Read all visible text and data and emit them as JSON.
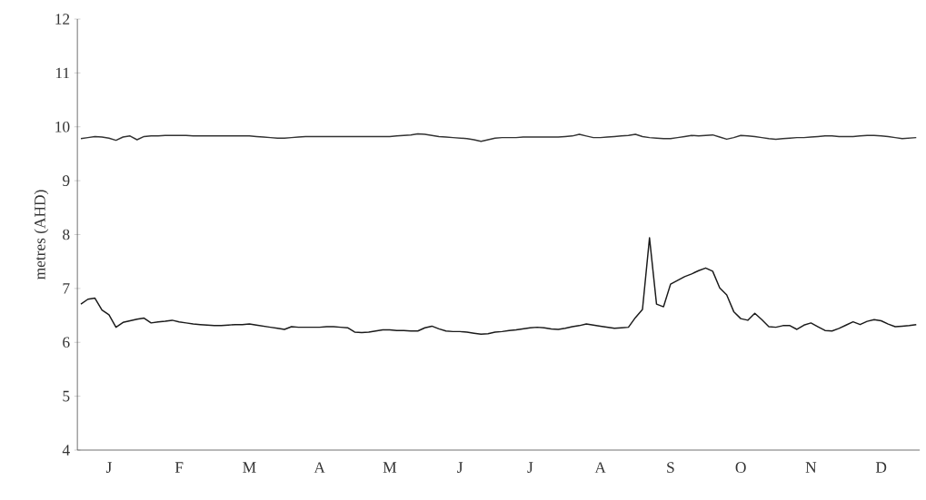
{
  "chart_data": {
    "type": "line",
    "ylabel": "metres (AHD)",
    "ylim": [
      4,
      12
    ],
    "categories": [
      null,
      null,
      null,
      null,
      "J",
      null,
      null,
      null,
      null,
      null,
      null,
      null,
      null,
      null,
      "F",
      null,
      null,
      null,
      null,
      null,
      null,
      null,
      null,
      null,
      "M",
      null,
      null,
      null,
      null,
      null,
      null,
      null,
      null,
      null,
      "A",
      null,
      null,
      null,
      null,
      null,
      null,
      null,
      null,
      null,
      "M",
      null,
      null,
      null,
      null,
      null,
      null,
      null,
      null,
      null,
      "J",
      null,
      null,
      null,
      null,
      null,
      null,
      null,
      null,
      null,
      "J",
      null,
      null,
      null,
      null,
      null,
      null,
      null,
      null,
      null,
      "A",
      null,
      null,
      null,
      null,
      null,
      null,
      null,
      null,
      null,
      "S",
      null,
      null,
      null,
      null,
      null,
      null,
      null,
      null,
      null,
      "O",
      null,
      null,
      null,
      null,
      null,
      null,
      null,
      null,
      null,
      "N",
      null,
      null,
      null,
      null,
      null,
      null,
      null,
      null,
      null,
      "D",
      null,
      null,
      null,
      null,
      null
    ],
    "yticks": [
      4,
      5,
      6,
      7,
      8,
      9,
      10,
      11,
      12
    ],
    "series": [
      {
        "color": "#333333",
        "values": [
          9.78,
          9.8,
          9.82,
          9.81,
          9.79,
          9.75,
          9.81,
          9.83,
          9.76,
          9.82,
          9.83,
          9.83,
          9.84,
          9.84,
          9.84,
          9.84,
          9.83,
          9.83,
          9.83,
          9.83,
          9.83,
          9.83,
          9.83,
          9.83,
          9.83,
          9.82,
          9.81,
          9.8,
          9.79,
          9.79,
          9.8,
          9.81,
          9.82,
          9.82,
          9.82,
          9.82,
          9.82,
          9.82,
          9.82,
          9.82,
          9.82,
          9.82,
          9.82,
          9.82,
          9.82,
          9.83,
          9.84,
          9.85,
          9.87,
          9.86,
          9.84,
          9.82,
          9.81,
          9.8,
          9.79,
          9.78,
          9.76,
          9.73,
          9.76,
          9.79,
          9.8,
          9.8,
          9.8,
          9.81,
          9.81,
          9.81,
          9.81,
          9.81,
          9.81,
          9.82,
          9.83,
          9.86,
          9.83,
          9.8,
          9.8,
          9.81,
          9.82,
          9.83,
          9.84,
          9.86,
          9.82,
          9.8,
          9.79,
          9.78,
          9.78,
          9.8,
          9.82,
          9.84,
          9.83,
          9.84,
          9.85,
          9.81,
          9.77,
          9.8,
          9.84,
          9.83,
          9.82,
          9.8,
          9.78,
          9.77,
          9.78,
          9.79,
          9.8,
          9.8,
          9.81,
          9.82,
          9.83,
          9.83,
          9.82,
          9.82,
          9.82,
          9.83,
          9.84,
          9.84,
          9.83,
          9.82,
          9.8,
          9.78,
          9.79,
          9.8
        ]
      },
      {
        "color": "#1a1a1a",
        "values": [
          6.71,
          6.8,
          6.82,
          6.6,
          6.51,
          6.28,
          6.37,
          6.4,
          6.43,
          6.45,
          6.36,
          6.38,
          6.39,
          6.41,
          6.38,
          6.36,
          6.34,
          6.33,
          6.32,
          6.31,
          6.31,
          6.32,
          6.33,
          6.33,
          6.34,
          6.32,
          6.3,
          6.28,
          6.26,
          6.24,
          6.29,
          6.28,
          6.28,
          6.28,
          6.28,
          6.29,
          6.29,
          6.28,
          6.27,
          6.19,
          6.18,
          6.19,
          6.21,
          6.23,
          6.23,
          6.22,
          6.22,
          6.21,
          6.21,
          6.27,
          6.3,
          6.25,
          6.21,
          6.2,
          6.2,
          6.19,
          6.17,
          6.15,
          6.16,
          6.19,
          6.2,
          6.22,
          6.23,
          6.25,
          6.27,
          6.28,
          6.27,
          6.25,
          6.24,
          6.26,
          6.29,
          6.31,
          6.34,
          6.32,
          6.3,
          6.28,
          6.26,
          6.27,
          6.28,
          6.46,
          6.61,
          7.94,
          6.71,
          6.66,
          7.08,
          7.15,
          7.22,
          7.27,
          7.33,
          7.38,
          7.32,
          7.01,
          6.88,
          6.57,
          6.44,
          6.41,
          6.54,
          6.42,
          6.29,
          6.28,
          6.31,
          6.31,
          6.24,
          6.32,
          6.36,
          6.29,
          6.22,
          6.21,
          6.26,
          6.32,
          6.38,
          6.33,
          6.39,
          6.42,
          6.4,
          6.34,
          6.29,
          6.3,
          6.31,
          6.33
        ]
      }
    ]
  }
}
